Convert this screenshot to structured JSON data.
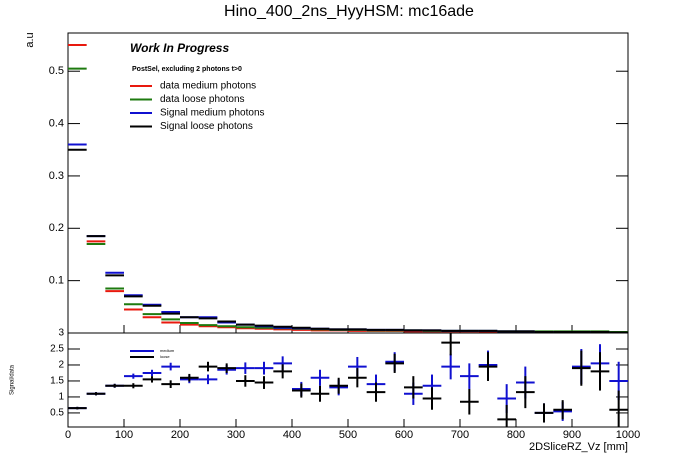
{
  "chart_data": [
    {
      "type": "histogram",
      "title": "Hino_400_2ns_HyyHSM: mc16ade",
      "y_label": "a.u",
      "annotations": [
        "Work In Progress",
        "PostSel, excluding 2 photons t>0"
      ],
      "bins": [
        0,
        33.33,
        66.67,
        100,
        133.33,
        166.67,
        200,
        233.33,
        266.67,
        300,
        333.33,
        366.67,
        400,
        433.33,
        466.67,
        500,
        533.33,
        566.67,
        600,
        633.33,
        666.67,
        700,
        733.33,
        766.67,
        800,
        833.33,
        866.67,
        900,
        933.33,
        966.67,
        1000
      ],
      "xlim": [
        0,
        1000
      ],
      "ylim": [
        0,
        0.573
      ],
      "yticks": [
        0.1,
        0.2,
        0.3,
        0.4,
        0.5
      ],
      "series": [
        {
          "name": "data medium photons",
          "color": "#e8190e",
          "values": [
            0.55,
            0.175,
            0.08,
            0.045,
            0.03,
            0.02,
            0.016,
            0.013,
            0.011,
            0.009,
            0.008,
            0.007,
            0.006,
            0.005,
            0.005,
            0.004,
            0.004,
            0.004,
            0.003,
            0.003,
            0.003,
            0.003,
            0.002,
            0.002,
            0.002,
            0.002,
            0.002,
            0.002,
            0.002,
            0.002
          ]
        },
        {
          "name": "data loose photons",
          "color": "#1e7a0f",
          "values": [
            0.505,
            0.17,
            0.085,
            0.055,
            0.036,
            0.026,
            0.019,
            0.015,
            0.013,
            0.011,
            0.01,
            0.009,
            0.008,
            0.007,
            0.006,
            0.006,
            0.005,
            0.005,
            0.005,
            0.004,
            0.004,
            0.004,
            0.004,
            0.003,
            0.003,
            0.003,
            0.003,
            0.003,
            0.003,
            0.002
          ]
        },
        {
          "name": "Signal medium photons",
          "color": "#1010d0",
          "values": [
            0.36,
            0.185,
            0.115,
            0.072,
            0.054,
            0.04,
            0.03,
            0.03,
            0.02,
            0.016,
            0.013,
            0.01,
            0.009,
            0.008,
            0.007,
            0.007,
            0.006,
            0.006,
            0.005,
            0.005,
            0.004,
            0.004,
            0.004,
            0.003,
            0.003,
            0.002,
            0.002,
            0.002,
            0.002,
            0.001
          ]
        },
        {
          "name": "Signal loose photons",
          "color": "#000000",
          "values": [
            0.35,
            0.185,
            0.11,
            0.07,
            0.052,
            0.037,
            0.03,
            0.028,
            0.022,
            0.016,
            0.014,
            0.012,
            0.01,
            0.008,
            0.007,
            0.007,
            0.006,
            0.006,
            0.005,
            0.005,
            0.004,
            0.004,
            0.004,
            0.003,
            0.003,
            0.002,
            0.002,
            0.002,
            0.002,
            0.001
          ]
        }
      ]
    },
    {
      "type": "ratio",
      "x_label": "2DSliceRZ_Vz [mm]",
      "y_label": "Signal/data",
      "xlim": [
        0,
        1000
      ],
      "xticks": [
        0,
        100,
        200,
        300,
        400,
        500,
        600,
        700,
        800,
        900,
        1000
      ],
      "ylim": [
        0.06,
        3
      ],
      "yticks": [
        0.5,
        1,
        1.5,
        2,
        2.5,
        3
      ],
      "series": [
        {
          "name": "medium",
          "color": "#1010d0",
          "values": [
            0.65,
            1.1,
            1.35,
            1.65,
            1.75,
            1.95,
            1.55,
            1.55,
            1.85,
            1.9,
            1.9,
            2.05,
            1.25,
            1.6,
            1.3,
            1.95,
            1.4,
            2.1,
            1.1,
            1.35,
            1.95,
            1.65,
            2.0,
            0.95,
            1.45,
            0.5,
            0.55,
            1.95,
            2.05,
            1.5
          ],
          "errors": [
            0.04,
            0.05,
            0.06,
            0.08,
            0.1,
            0.12,
            0.12,
            0.15,
            0.15,
            0.18,
            0.2,
            0.22,
            0.22,
            0.25,
            0.25,
            0.3,
            0.3,
            0.3,
            0.35,
            0.35,
            0.4,
            0.4,
            0.45,
            0.45,
            0.5,
            0.3,
            0.3,
            0.55,
            0.6,
            0.6
          ]
        },
        {
          "name": "loose",
          "color": "#000000",
          "values": [
            0.65,
            1.1,
            1.35,
            1.35,
            1.55,
            1.4,
            1.6,
            1.95,
            1.9,
            1.5,
            1.45,
            1.8,
            1.2,
            1.1,
            1.35,
            1.6,
            1.15,
            2.05,
            1.3,
            0.95,
            2.7,
            0.85,
            1.95,
            0.3,
            1.15,
            0.5,
            0.6,
            1.9,
            1.8,
            0.6
          ],
          "errors": [
            0.04,
            0.05,
            0.06,
            0.08,
            0.1,
            0.12,
            0.12,
            0.15,
            0.15,
            0.18,
            0.2,
            0.22,
            0.22,
            0.25,
            0.25,
            0.3,
            0.3,
            0.3,
            0.35,
            0.35,
            0.4,
            0.4,
            0.45,
            0.45,
            0.5,
            0.3,
            0.3,
            0.55,
            0.6,
            0.6
          ]
        }
      ]
    }
  ]
}
